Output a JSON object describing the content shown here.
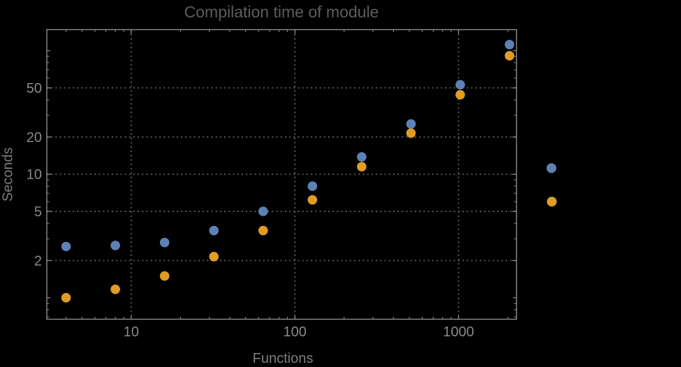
{
  "chart_data": {
    "type": "scatter",
    "title": "Compilation time of module",
    "xlabel": "Functions",
    "ylabel": "Seconds",
    "x_scale": "log",
    "y_scale": "log",
    "xlim": [
      3.05,
      2260
    ],
    "ylim": [
      0.67,
      148
    ],
    "x_ticks": [
      10,
      100,
      1000
    ],
    "y_ticks": [
      2,
      5,
      10,
      20,
      50
    ],
    "y_unlabeled_major_ticks": [
      1,
      100
    ],
    "grid": "dotted lines at labeled major ticks only",
    "legend_position": "right-outside, marker dots only (no visible text)",
    "categories": [
      4,
      8,
      16,
      32,
      64,
      128,
      256,
      512,
      1024,
      2048
    ],
    "series": [
      {
        "name": "blue",
        "color": "#5E81B5",
        "values": [
          2.6,
          2.65,
          2.8,
          3.5,
          5.0,
          8.0,
          13.8,
          25.5,
          53,
          112
        ]
      },
      {
        "name": "orange",
        "color": "#E19C24",
        "values": [
          1.0,
          1.17,
          1.5,
          2.15,
          3.5,
          6.2,
          11.5,
          21.5,
          44,
          91
        ]
      }
    ],
    "colors": {
      "background": "#000000",
      "frame": "#8f8f8f",
      "grid": "#6e6e6e",
      "tick_labels": "#898989",
      "axis_labels": "#7d7d7d",
      "title": "#5d5d5d",
      "series_blue": "#5E81B5",
      "series_orange": "#E19C24"
    }
  }
}
